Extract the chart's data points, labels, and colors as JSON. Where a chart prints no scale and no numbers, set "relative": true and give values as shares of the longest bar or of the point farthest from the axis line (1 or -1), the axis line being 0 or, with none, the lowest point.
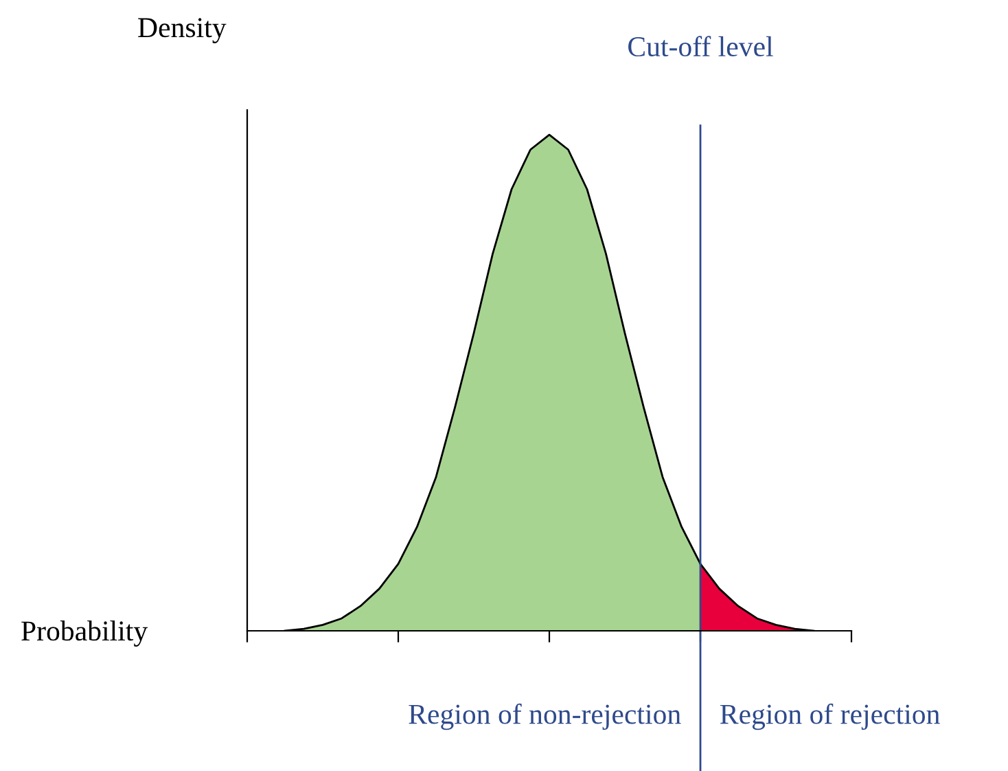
{
  "chart_data": {
    "type": "area",
    "relative": true,
    "ylabel": "Density",
    "xlabel": "Probability",
    "categories": [
      null,
      null,
      null,
      null,
      null,
      null,
      null,
      null,
      null,
      null,
      null,
      null,
      null,
      null,
      null,
      null,
      null,
      null,
      null,
      null,
      null,
      null,
      null,
      null,
      null,
      null,
      null,
      null,
      null,
      null,
      null,
      null,
      null
    ],
    "series": [
      {
        "color": "#a8d492",
        "values": [
          null,
          null,
          0,
          0.004,
          0.012,
          0.025,
          0.05,
          0.085,
          0.135,
          0.21,
          0.31,
          0.45,
          0.6,
          0.76,
          0.89,
          0.97,
          1,
          0.97,
          0.89,
          0.76,
          0.6,
          0.45,
          0.31,
          0.21,
          0.135,
          null,
          null,
          null,
          null,
          null,
          null,
          null,
          null
        ]
      },
      {
        "color": "#e8003c",
        "values": [
          null,
          null,
          null,
          null,
          null,
          null,
          null,
          null,
          null,
          null,
          null,
          null,
          null,
          null,
          null,
          null,
          null,
          null,
          null,
          null,
          null,
          null,
          null,
          null,
          0.135,
          0.085,
          0.05,
          0.025,
          0.012,
          0.004,
          0,
          null,
          null
        ]
      }
    ],
    "annotations": [
      "Cut-off level",
      "Region of non-rejection",
      "Region of rejection"
    ],
    "grid": false
  }
}
